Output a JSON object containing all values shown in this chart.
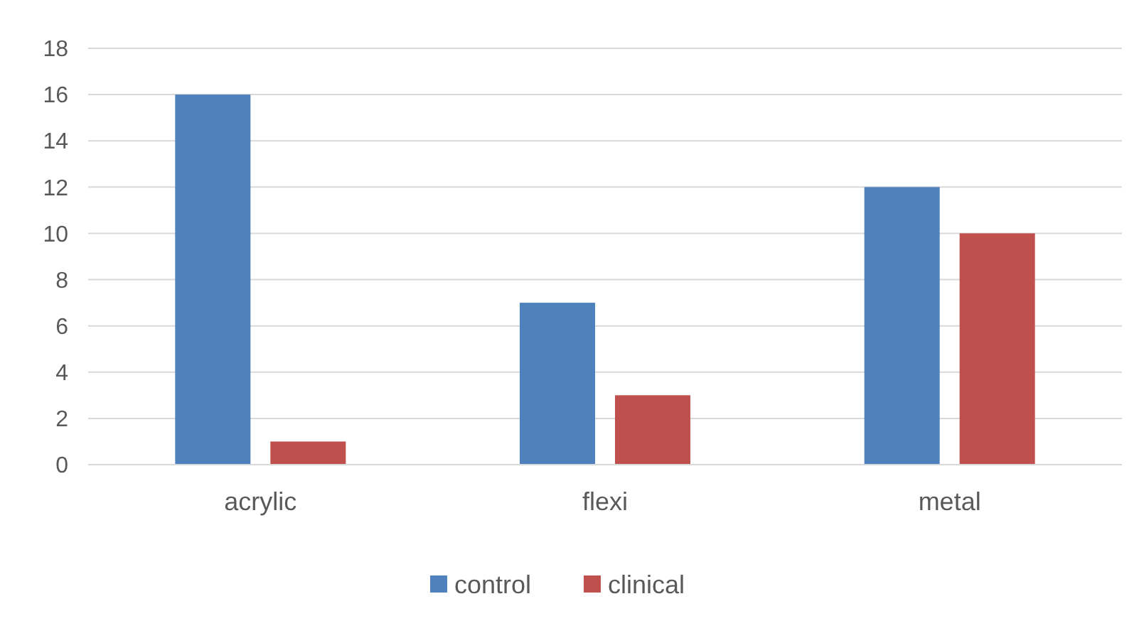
{
  "chart_data": {
    "type": "bar",
    "categories": [
      "acrylic",
      "flexi",
      "metal"
    ],
    "series": [
      {
        "name": "control",
        "color": "#4f81bd",
        "values": [
          16,
          7,
          12
        ]
      },
      {
        "name": "clinical",
        "color": "#c0504d",
        "values": [
          1,
          3,
          10
        ]
      }
    ],
    "ylim": [
      0,
      18
    ],
    "yticks": [
      0,
      2,
      4,
      6,
      8,
      10,
      12,
      14,
      16,
      18
    ],
    "grid": "y",
    "legend": "bottom"
  }
}
